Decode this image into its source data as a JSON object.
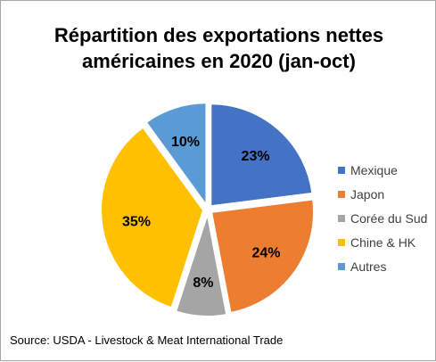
{
  "title": "Répartition des exportations nettes\naméricaines en 2020 (jan-oct)",
  "source": "Source: USDA - Livestock & Meat International Trade",
  "chart_data": {
    "type": "pie",
    "title": "Répartition des exportations nettes américaines en 2020 (jan-oct)",
    "categories": [
      "Mexique",
      "Japon",
      "Corée du Sud",
      "Chine & HK",
      "Autres"
    ],
    "values": [
      23,
      24,
      8,
      35,
      10
    ],
    "labels": [
      "23%",
      "24%",
      "8%",
      "35%",
      "10%"
    ],
    "colors": [
      "#4472c4",
      "#ed7d31",
      "#a5a5a5",
      "#ffc000",
      "#5b9bd5"
    ],
    "legend_position": "right"
  }
}
